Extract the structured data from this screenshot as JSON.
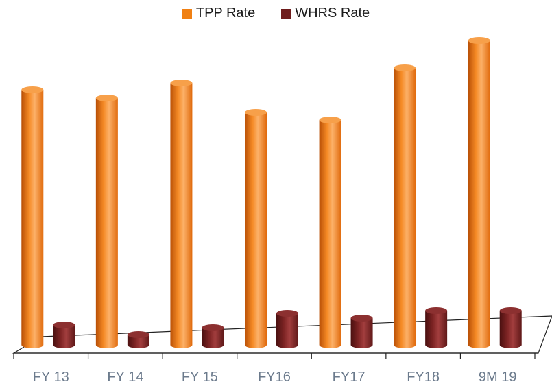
{
  "chart_data": {
    "type": "bar",
    "title": "",
    "xlabel": "",
    "ylabel": "",
    "categories": [
      "FY 13",
      "FY 14",
      "FY 15",
      "FY16",
      "FY17",
      "FY18",
      "9M 19"
    ],
    "series": [
      {
        "name": "TPP Rate",
        "color": "#e8700f",
        "values": [
          372,
          360,
          382,
          339,
          328,
          404,
          444
        ]
      },
      {
        "name": "WHRS Rate",
        "color": "#6e1c1c",
        "values": [
          29,
          15,
          25,
          46,
          39,
          50,
          50
        ]
      }
    ],
    "ylim": [
      0,
      460
    ],
    "grid": false,
    "legend": "top-center"
  }
}
